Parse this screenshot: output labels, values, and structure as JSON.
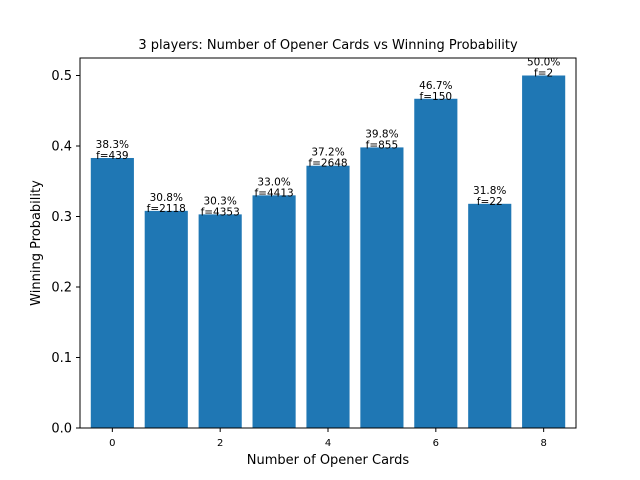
{
  "chart_data": {
    "type": "bar",
    "title": "3 players: Number of Opener Cards vs Winning Probability",
    "xlabel": "Number of Opener Cards",
    "ylabel": "Winning Probability",
    "x": [
      0,
      1,
      2,
      3,
      4,
      5,
      6,
      7,
      8
    ],
    "values": [
      0.383,
      0.308,
      0.303,
      0.33,
      0.372,
      0.398,
      0.467,
      0.318,
      0.5
    ],
    "bar_labels": [
      [
        "38.3%",
        "f=439"
      ],
      [
        "30.8%",
        "f=2118"
      ],
      [
        "30.3%",
        "f=4353"
      ],
      [
        "33.0%",
        "f=4413"
      ],
      [
        "37.2%",
        "f=2648"
      ],
      [
        "39.8%",
        "f=855"
      ],
      [
        "46.7%",
        "f=150"
      ],
      [
        "31.8%",
        "f=22"
      ],
      [
        "50.0%",
        "f=2"
      ]
    ],
    "xticks": [
      "0",
      "2",
      "4",
      "6",
      "8"
    ],
    "yticks": [
      "0.0",
      "0.1",
      "0.2",
      "0.3",
      "0.4",
      "0.5"
    ],
    "xlim": [
      -0.6,
      8.6
    ],
    "ylim": [
      0,
      0.5
    ],
    "bar_color": "#1f77b4",
    "grid": false,
    "legend": "none"
  }
}
